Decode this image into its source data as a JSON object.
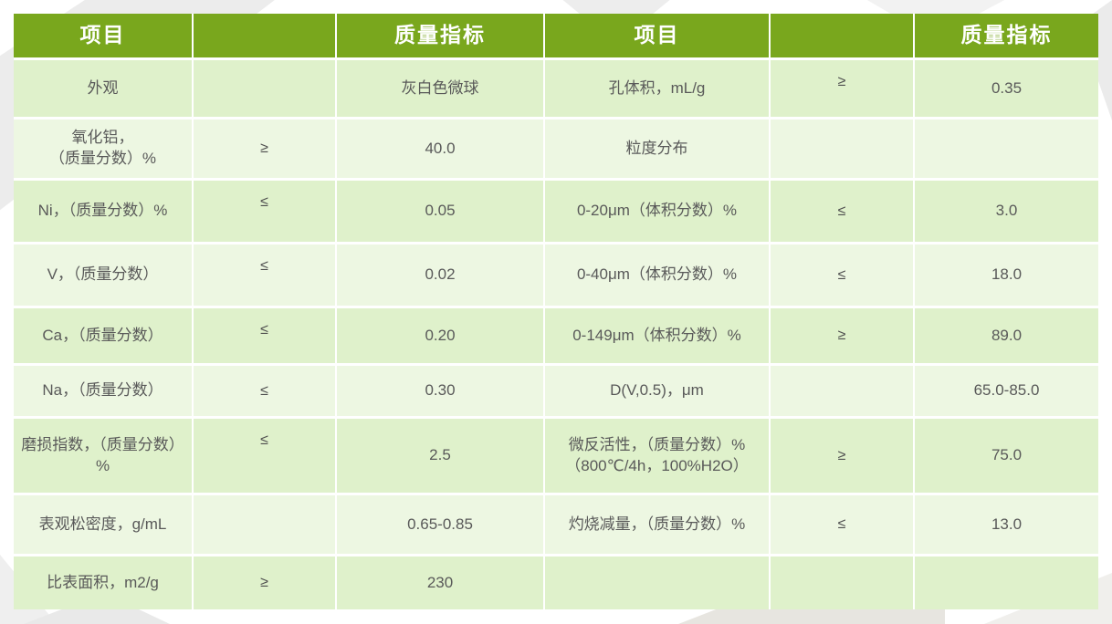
{
  "theme": {
    "header_bg": "#79a71d",
    "band_dark": "#dff1cb",
    "band_light": "#edf7e2",
    "header_text": "#ffffff",
    "body_text": "#595959",
    "grid_line": "#ffffff"
  },
  "table": {
    "headers": {
      "item_l": "项目",
      "op_l": "",
      "val_l": "质量指标",
      "item_r": "项目",
      "op_r": "",
      "val_r": "质量指标"
    },
    "rows": [
      {
        "item_l": "外观",
        "op_l": "",
        "val_l": "灰白色微球",
        "item_r": "孔体积，mL/g",
        "op_r": "≥",
        "val_r": "0.35"
      },
      {
        "item_l": "氧化铝，\n（质量分数）%",
        "op_l": "≥",
        "val_l": "40.0",
        "item_r": "粒度分布",
        "op_r": "",
        "val_r": ""
      },
      {
        "item_l": "Ni，（质量分数）%",
        "op_l": "≤",
        "val_l": "0.05",
        "item_r": "0-20μm（体积分数）%",
        "op_r": "≤",
        "val_r": "3.0"
      },
      {
        "item_l": "V，（质量分数）",
        "op_l": "≤",
        "val_l": "0.02",
        "item_r": "0-40μm（体积分数）%",
        "op_r": "≤",
        "val_r": "18.0"
      },
      {
        "item_l": "Ca，（质量分数）",
        "op_l": "≤",
        "val_l": "0.20",
        "item_r": "0-149μm（体积分数）%",
        "op_r": "≥",
        "val_r": "89.0"
      },
      {
        "item_l": "Na，（质量分数）",
        "op_l": "≤",
        "val_l": "0.30",
        "item_r": "D(V,0.5)，μm",
        "op_r": "",
        "val_r": "65.0-85.0"
      },
      {
        "item_l": "磨损指数，（质量分数）%",
        "op_l": "≤",
        "val_l": "2.5",
        "item_r": "微反活性，（质量分数）%\n（800℃/4h，100%H2O）",
        "op_r": "≥",
        "val_r": "75.0"
      },
      {
        "item_l": "表观松密度，g/mL",
        "op_l": "",
        "val_l": "0.65-0.85",
        "item_r": "灼烧减量，（质量分数）%",
        "op_r": "≤",
        "val_r": "13.0"
      },
      {
        "item_l": "比表面积，m2/g",
        "op_l": "≥",
        "val_l": "230",
        "item_r": "",
        "op_r": "",
        "val_r": ""
      }
    ]
  }
}
